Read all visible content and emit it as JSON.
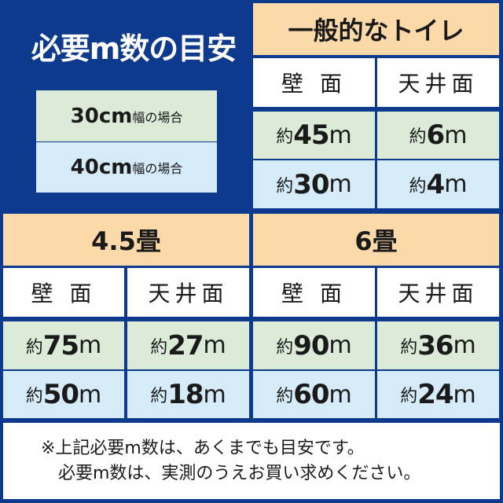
{
  "title": "必要m数の目安",
  "legend": [
    {
      "size": "30cm",
      "suffix": "幅の場合",
      "color": "#dcebd8"
    },
    {
      "size": "40cm",
      "suffix": "幅の場合",
      "color": "#d5ebf8"
    }
  ],
  "colors": {
    "background": "#0d3a8c",
    "header": "#fcd9a8",
    "row_30cm": "#dcebd8",
    "row_40cm": "#d5ebf8"
  },
  "tables": [
    {
      "name": "一般的なトイレ",
      "columns": [
        "壁 面",
        "天井面"
      ],
      "rows": [
        [
          "45",
          "6"
        ],
        [
          "30",
          "4"
        ]
      ]
    },
    {
      "name": "4.5畳",
      "columns": [
        "壁 面",
        "天井面"
      ],
      "rows": [
        [
          "75",
          "27"
        ],
        [
          "50",
          "18"
        ]
      ]
    },
    {
      "name": "6畳",
      "columns": [
        "壁 面",
        "天井面"
      ],
      "rows": [
        [
          "90",
          "36"
        ],
        [
          "60",
          "24"
        ]
      ]
    }
  ],
  "prefix": "約",
  "unit": "m",
  "note": [
    "※上記必要m数は、あくまでも目安です。",
    "必要m数は、実測のうえお買い求めください。"
  ]
}
